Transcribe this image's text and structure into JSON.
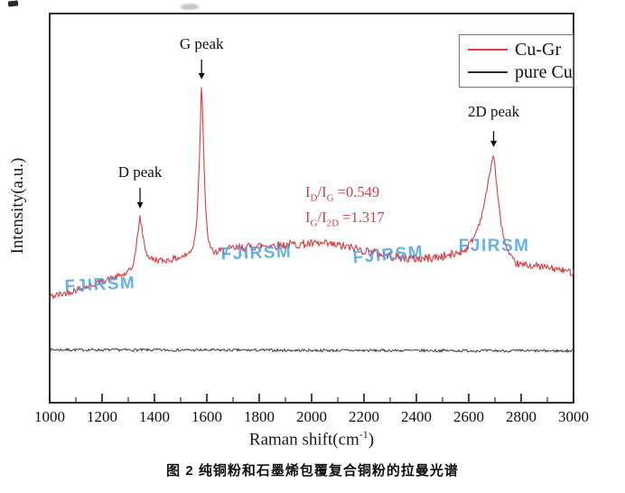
{
  "figure": {
    "caption": "图 2 纯铜粉和石墨烯包覆复合铜粉的拉曼光谱"
  },
  "chart_data": {
    "type": "line",
    "title": "",
    "xlabel_parts": {
      "prefix": "Raman shift(cm",
      "sup": "-1",
      "suffix": ")"
    },
    "ylabel": "Intensity(a.u.)",
    "xlim": [
      1000,
      3000
    ],
    "xtick_major_step": 200,
    "xtick_minor_step": 100,
    "xtick_labels": [
      "1000",
      "1200",
      "1400",
      "1600",
      "1800",
      "2000",
      "2200",
      "2400",
      "2600",
      "2800",
      "3000"
    ],
    "ylim": [
      0,
      1
    ],
    "grid": false,
    "legend": {
      "position": "top-right"
    },
    "series": [
      {
        "name": "Cu-Gr",
        "color": "#e13b41",
        "noise_seed": 42,
        "anchors": [
          [
            1000,
            0.272
          ],
          [
            1050,
            0.28
          ],
          [
            1100,
            0.29
          ],
          [
            1150,
            0.3
          ],
          [
            1200,
            0.312
          ],
          [
            1250,
            0.322
          ],
          [
            1290,
            0.331
          ],
          [
            1315,
            0.345
          ],
          [
            1330,
            0.395
          ],
          [
            1338,
            0.445
          ],
          [
            1345,
            0.478
          ],
          [
            1353,
            0.442
          ],
          [
            1363,
            0.4
          ],
          [
            1375,
            0.376
          ],
          [
            1395,
            0.368
          ],
          [
            1430,
            0.365
          ],
          [
            1465,
            0.368
          ],
          [
            1500,
            0.374
          ],
          [
            1530,
            0.382
          ],
          [
            1550,
            0.405
          ],
          [
            1562,
            0.47
          ],
          [
            1572,
            0.63
          ],
          [
            1578,
            0.78
          ],
          [
            1580,
            0.826
          ],
          [
            1583,
            0.77
          ],
          [
            1588,
            0.64
          ],
          [
            1595,
            0.5
          ],
          [
            1604,
            0.425
          ],
          [
            1615,
            0.395
          ],
          [
            1630,
            0.386
          ],
          [
            1660,
            0.39
          ],
          [
            1700,
            0.396
          ],
          [
            1760,
            0.4
          ],
          [
            1820,
            0.404
          ],
          [
            1880,
            0.405
          ],
          [
            1940,
            0.407
          ],
          [
            2000,
            0.408
          ],
          [
            2060,
            0.407
          ],
          [
            2120,
            0.402
          ],
          [
            2180,
            0.394
          ],
          [
            2240,
            0.386
          ],
          [
            2300,
            0.377
          ],
          [
            2360,
            0.371
          ],
          [
            2420,
            0.37
          ],
          [
            2480,
            0.374
          ],
          [
            2540,
            0.38
          ],
          [
            2590,
            0.395
          ],
          [
            2620,
            0.425
          ],
          [
            2645,
            0.47
          ],
          [
            2665,
            0.53
          ],
          [
            2680,
            0.59
          ],
          [
            2690,
            0.625
          ],
          [
            2695,
            0.64
          ],
          [
            2701,
            0.6
          ],
          [
            2712,
            0.52
          ],
          [
            2725,
            0.455
          ],
          [
            2740,
            0.405
          ],
          [
            2755,
            0.378
          ],
          [
            2775,
            0.36
          ],
          [
            2800,
            0.354
          ],
          [
            2850,
            0.352
          ],
          [
            2900,
            0.347
          ],
          [
            2950,
            0.341
          ],
          [
            3000,
            0.334
          ]
        ],
        "noise_amp": [
          [
            1000,
            0.009
          ],
          [
            1330,
            0.007
          ],
          [
            1360,
            0.007
          ],
          [
            1540,
            0.009
          ],
          [
            1565,
            0.004
          ],
          [
            1600,
            0.005
          ],
          [
            1650,
            0.011
          ],
          [
            2550,
            0.012
          ],
          [
            2660,
            0.006
          ],
          [
            2730,
            0.006
          ],
          [
            2770,
            0.009
          ],
          [
            3000,
            0.009
          ]
        ]
      },
      {
        "name": "pure Cu",
        "color": "#2b2b2b",
        "noise_seed": 7,
        "anchors": [
          [
            1000,
            0.136
          ],
          [
            3000,
            0.133
          ]
        ],
        "noise_amp": [
          [
            1000,
            0.0035
          ],
          [
            3000,
            0.0035
          ]
        ]
      }
    ],
    "peak_annotations": [
      {
        "label": "D peak",
        "x": 1345,
        "tip_y": 0.499,
        "tail_y": 0.552,
        "label_y": 0.571
      },
      {
        "label": "G peak",
        "x": 1580,
        "tip_y": 0.831,
        "tail_y": 0.882,
        "label_y": 0.9
      },
      {
        "label": "2D peak",
        "x": 2695,
        "tip_y": 0.657,
        "tail_y": 0.698,
        "label_y": 0.726
      }
    ],
    "ratio_annotation": {
      "color": "#ce4247",
      "x": 1976,
      "lines": [
        {
          "y": 0.564,
          "parts": [
            {
              "t": "I"
            },
            {
              "t": "D",
              "sub": true
            },
            {
              "t": "/I"
            },
            {
              "t": "G",
              "sub": true
            },
            {
              "t": " =0.549"
            }
          ]
        },
        {
          "y": 0.499,
          "parts": [
            {
              "t": "I"
            },
            {
              "t": "G",
              "sub": true
            },
            {
              "t": "/I"
            },
            {
              "t": "2D",
              "sub": true
            },
            {
              "t": " =1.317"
            }
          ]
        }
      ]
    },
    "watermarks": {
      "text": "FJIRSM",
      "color": "#41a0e3",
      "positions": [
        {
          "x": 1193,
          "y": 0.302,
          "rotate": -3
        },
        {
          "x": 1790,
          "y": 0.383,
          "rotate": -2
        },
        {
          "x": 2293,
          "y": 0.378,
          "rotate": -5
        },
        {
          "x": 2697,
          "y": 0.401,
          "rotate": 0
        }
      ]
    }
  }
}
